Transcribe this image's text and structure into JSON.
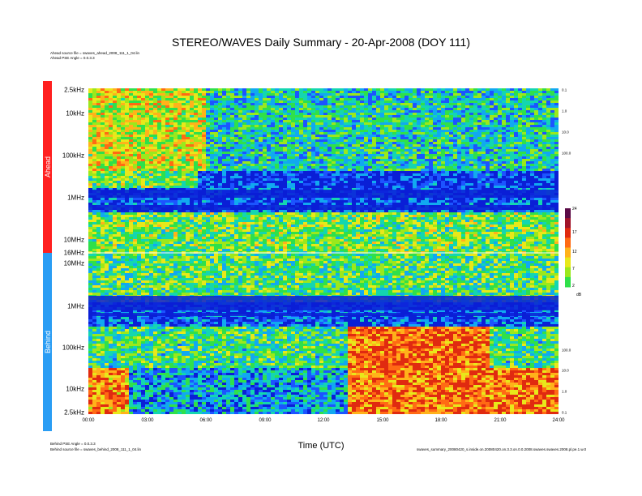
{
  "title": "STEREO/WAVES Daily Summary - 20-Apr-2008 (DOY 111)",
  "header_notes": {
    "ahead_source": "Ahead source file = swaves_ahead_2008_111_1_04.lin",
    "ahead_angle": "Ahead PSE Angle = 0.0.3.3"
  },
  "footer_notes": {
    "behind_angle": "Behind PSE Angle = 0.0.3.3",
    "behind_source": "Behind source file = swaves_behind_2008_111_1_04.lin",
    "right_note": "swaves_summary_20080420_s.inside.on.20080420.on.3.3.on.0.0.2008.swaves.swaves.2008.pl.pe.1.w.0"
  },
  "panels": {
    "ahead": {
      "label": "Ahead",
      "color": "#ff2020"
    },
    "behind": {
      "label": "Behind",
      "color": "#2a9df4"
    }
  },
  "chart_data": {
    "type": "heatmap",
    "title": "STEREO/WAVES Daily Summary - 20-Apr-2008 (DOY 111)",
    "xlabel": "Time (UTC)",
    "x_ticks": [
      "00:00",
      "03:00",
      "06:00",
      "09:00",
      "12:00",
      "15:00",
      "18:00",
      "21:00",
      "24:00"
    ],
    "xlim": [
      "00:00",
      "24:00"
    ],
    "ahead_y_ticks": [
      "2.5kHz",
      "10kHz",
      "100kHz",
      "1MHz",
      "10MHz",
      "16MHz"
    ],
    "behind_y_ticks": [
      "10MHz",
      "1MHz",
      "100kHz",
      "10kHz",
      "2.5kHz"
    ],
    "right_ticks_ahead": [
      "0.1",
      "1.0",
      "10.0",
      "100.0"
    ],
    "right_ticks_behind": [
      "100.0",
      "10.0",
      "1.0",
      "0.1"
    ],
    "colorbar": {
      "ticks": [
        "24",
        "17",
        "12",
        "7",
        "2"
      ],
      "unit": "dB",
      "range": [
        2,
        24
      ]
    },
    "grid": false
  }
}
